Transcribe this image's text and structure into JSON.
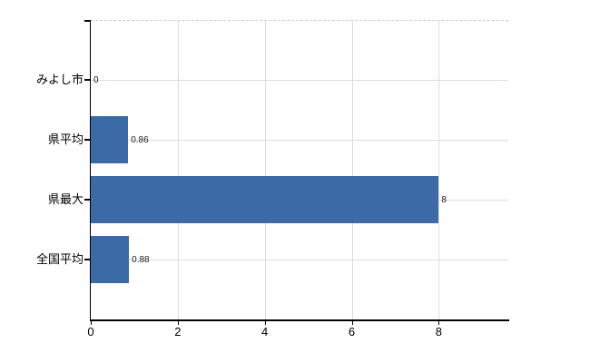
{
  "chart_data": {
    "type": "bar",
    "orientation": "horizontal",
    "title": "",
    "xlabel": "",
    "ylabel": "",
    "categories": [
      "みよし市",
      "県平均",
      "県最大",
      "全国平均"
    ],
    "values": [
      0,
      0.86,
      8,
      0.88
    ],
    "value_labels": [
      "0",
      "0.86",
      "8",
      "0.88"
    ],
    "x_ticks": [
      0,
      2,
      4,
      6,
      8
    ],
    "x_tick_labels": [
      "0",
      "2",
      "4",
      "6",
      "8"
    ],
    "xlim": [
      0,
      9.6
    ],
    "grid": "on",
    "legend": "none",
    "colors": {
      "bar": "#3b6aa6",
      "axis": "#000000",
      "h_gridline": "#d7dfd4",
      "v_gridline": "#dcdcdc",
      "top_border_dashed": "#c9c9c9",
      "label_text": "#000000",
      "background": "#ffffff"
    }
  }
}
